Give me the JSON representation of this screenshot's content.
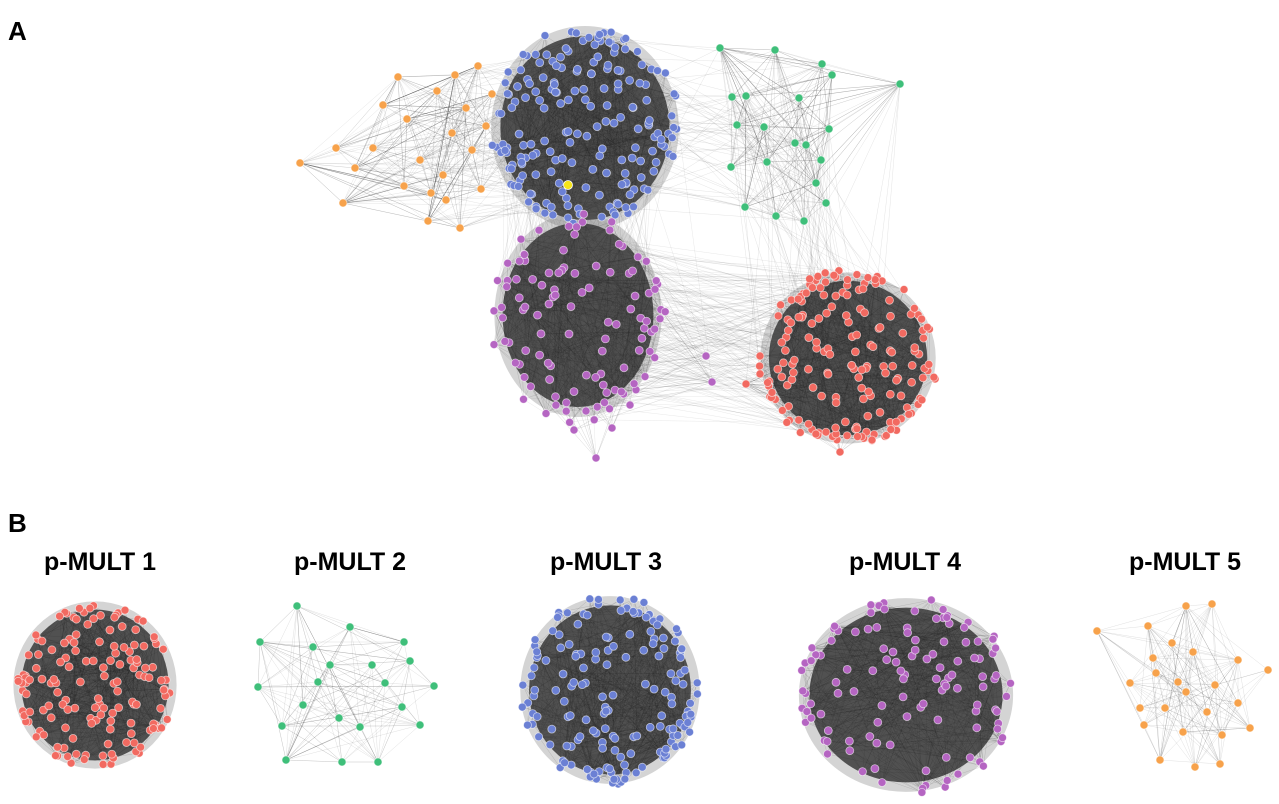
{
  "panels": {
    "a_label": "A",
    "b_label": "B"
  },
  "colors": {
    "red": "#f26a61",
    "green": "#3fbf7a",
    "blue": "#6b80d4",
    "purple": "#b565c2",
    "orange": "#f7a24b",
    "yellow": "#f5e41a",
    "edge": "#222222"
  },
  "modules": [
    {
      "name": "p-MULT 1",
      "color_key": "red",
      "node_count": 150
    },
    {
      "name": "p-MULT 2",
      "color_key": "green",
      "node_count": 20
    },
    {
      "name": "p-MULT 3",
      "color_key": "blue",
      "node_count": 170
    },
    {
      "name": "p-MULT 4",
      "color_key": "purple",
      "node_count": 120
    },
    {
      "name": "p-MULT 5",
      "color_key": "orange",
      "node_count": 26
    }
  ],
  "highlight_node": {
    "color_key": "yellow"
  }
}
